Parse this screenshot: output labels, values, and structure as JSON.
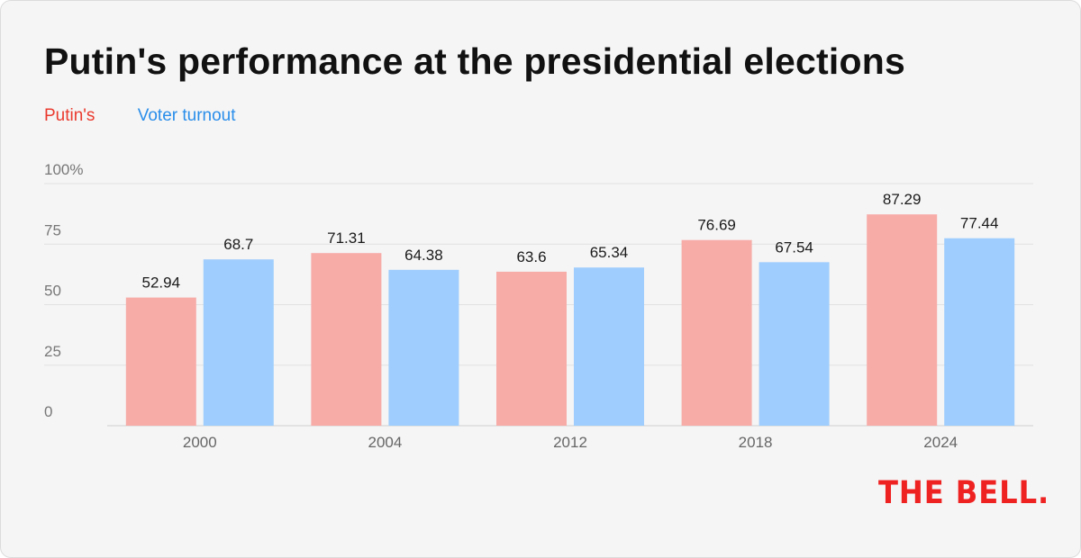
{
  "chart_data": {
    "type": "bar",
    "title": "Putin's performance at the presidential elections",
    "categories": [
      "2000",
      "2004",
      "2012",
      "2018",
      "2024"
    ],
    "series": [
      {
        "name": "Putin's",
        "values": [
          52.94,
          71.31,
          63.6,
          76.69,
          87.29
        ],
        "color": "#f7aca8",
        "legend_color": "#ea3a2e"
      },
      {
        "name": "Voter turnout",
        "values": [
          68.7,
          64.38,
          65.34,
          67.54,
          77.44
        ],
        "color": "#9fcdfd",
        "legend_color": "#2a8eea"
      }
    ],
    "yticks": [
      "0",
      "25",
      "50",
      "75",
      "100%"
    ],
    "ylim": [
      0,
      100
    ],
    "grid": true,
    "legend_position": "top-left",
    "xlabel": "",
    "ylabel": ""
  },
  "branding": {
    "logo_text": "THE BELL."
  }
}
